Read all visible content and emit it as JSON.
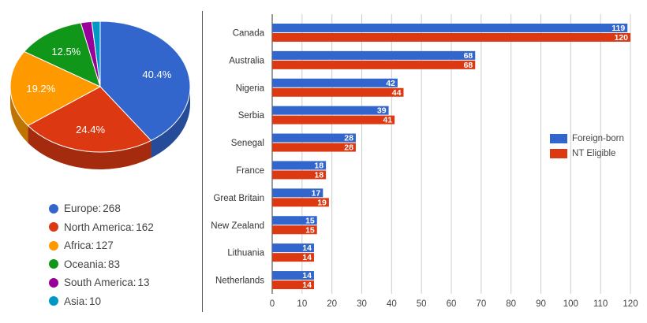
{
  "chart_data": [
    {
      "type": "pie",
      "categories": [
        "Europe",
        "North America",
        "Africa",
        "Oceania",
        "South America",
        "Asia"
      ],
      "values": [
        268,
        162,
        127,
        83,
        13,
        10
      ],
      "percent_labels": [
        "40.4%",
        "24.4%",
        "19.2%",
        "12.5%",
        "",
        ""
      ],
      "colors": [
        "#3366cc",
        "#dc3912",
        "#ff9900",
        "#109618",
        "#990099",
        "#0099c6"
      ],
      "dark_colors": [
        "#264c99",
        "#a52b0e",
        "#bf7300",
        "#0c7112",
        "#730073",
        "#007394"
      ],
      "legend_position": "bottom",
      "three_d": true
    },
    {
      "type": "bar",
      "orientation": "horizontal",
      "categories": [
        "Canada",
        "Australia",
        "Nigeria",
        "Serbia",
        "Senegal",
        "France",
        "Great Britain",
        "New Zealand",
        "Lithuania",
        "Netherlands"
      ],
      "series": [
        {
          "name": "Foreign-born",
          "color": "#3366cc",
          "values": [
            119,
            68,
            42,
            39,
            28,
            18,
            17,
            15,
            14,
            14
          ]
        },
        {
          "name": "NT Eligible",
          "color": "#dc3912",
          "values": [
            120,
            68,
            44,
            41,
            28,
            18,
            19,
            15,
            14,
            14
          ]
        }
      ],
      "xlim": [
        0,
        120
      ],
      "xticks": [
        0,
        10,
        20,
        30,
        40,
        50,
        60,
        70,
        80,
        90,
        100,
        110,
        120
      ],
      "grid": true,
      "legend_position": "right"
    }
  ]
}
